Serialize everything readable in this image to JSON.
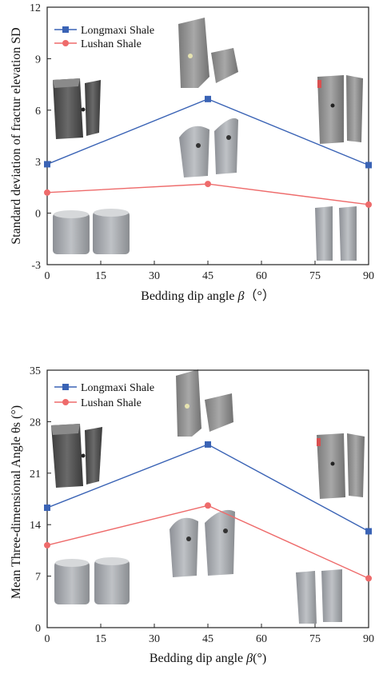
{
  "chart_data": [
    {
      "type": "line",
      "xlabel_main": "Bedding dip angle",
      "xlabel_symbol": "β",
      "xlabel_unit": "（°）",
      "ylabel": "Standard deviation of fractur elevation SD",
      "xlim": [
        0,
        90
      ],
      "ylim": [
        -3,
        12
      ],
      "x_ticks": [
        0,
        15,
        30,
        45,
        60,
        75,
        90
      ],
      "y_ticks": [
        -3,
        0,
        3,
        6,
        9,
        12
      ],
      "legend_position": "top-left",
      "series": [
        {
          "name": "Longmaxi Shale",
          "marker": "square",
          "color": "#3a63b5",
          "x": [
            0,
            45,
            90
          ],
          "y": [
            2.85,
            6.65,
            2.8
          ]
        },
        {
          "name": "Lushan Shale",
          "marker": "circle",
          "color": "#ee6b6b",
          "x": [
            0,
            45,
            90
          ],
          "y": [
            1.2,
            1.7,
            0.5
          ]
        }
      ],
      "sample_photos": [
        "photo-0deg-split",
        "photo-45deg-split",
        "photo-90deg-split",
        "photo-0deg-lushan",
        "photo-45deg-lushan",
        "photo-90deg-lushan"
      ]
    },
    {
      "type": "line",
      "xlabel_main": "Bedding dip angle",
      "xlabel_symbol": "β",
      "xlabel_unit": "(°)",
      "ylabel": "Mean Three-dimensional Angle θs (°)",
      "xlim": [
        0,
        90
      ],
      "ylim": [
        0,
        35
      ],
      "x_ticks": [
        0,
        15,
        30,
        45,
        60,
        75,
        90
      ],
      "y_ticks": [
        0,
        7,
        14,
        21,
        28,
        35
      ],
      "legend_position": "top-left",
      "series": [
        {
          "name": "Longmaxi Shale",
          "marker": "square",
          "color": "#3a63b5",
          "x": [
            0,
            45,
            90
          ],
          "y": [
            16.3,
            24.9,
            13.1
          ]
        },
        {
          "name": "Lushan Shale",
          "marker": "circle",
          "color": "#ee6b6b",
          "x": [
            0,
            45,
            90
          ],
          "y": [
            11.2,
            16.6,
            6.7
          ]
        }
      ],
      "sample_photos": [
        "photo-0deg-split",
        "photo-45deg-split",
        "photo-90deg-split",
        "photo-0deg-lushan",
        "photo-45deg-lushan",
        "photo-90deg-lushan"
      ]
    }
  ]
}
